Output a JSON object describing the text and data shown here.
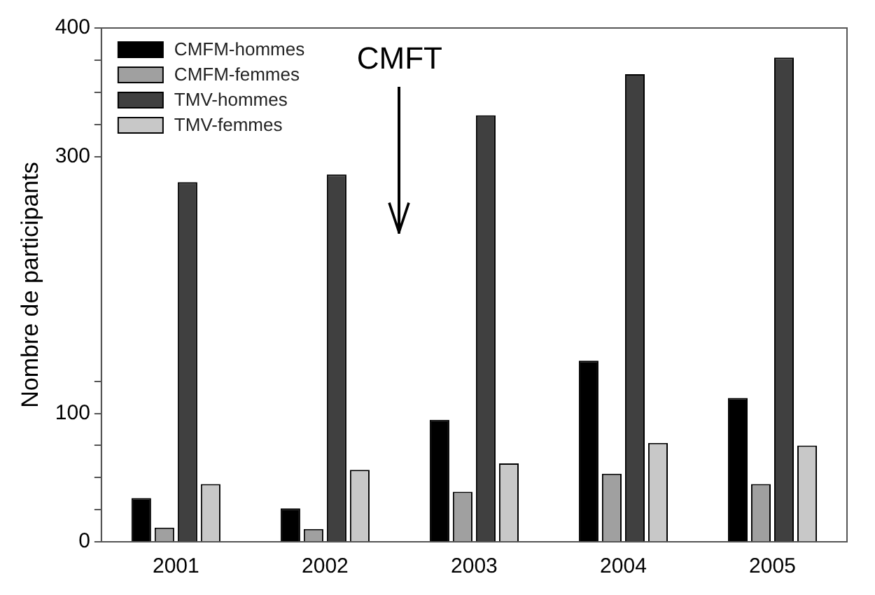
{
  "chart_data": {
    "type": "bar",
    "ylabel": "Nombre de participants",
    "categories": [
      "2001",
      "2002",
      "2003",
      "2004",
      "2005"
    ],
    "series": [
      {
        "name": "CMFM-hommes",
        "color": "#000000",
        "values": [
          34,
          26,
          95,
          141,
          112
        ]
      },
      {
        "name": "CMFM-femmes",
        "color": "#a0a0a0",
        "values": [
          11,
          10,
          39,
          53,
          45
        ]
      },
      {
        "name": "TMV-hommes",
        "color": "#404040",
        "values": [
          280,
          286,
          332,
          364,
          377
        ]
      },
      {
        "name": "TMV-femmes",
        "color": "#c8c8c8",
        "values": [
          45,
          56,
          61,
          77,
          75
        ]
      }
    ],
    "ylim": [
      0,
      400
    ],
    "yticks": [
      0,
      {
        "value": 25,
        "label": null
      },
      {
        "value": 50,
        "label": null
      },
      {
        "value": 75,
        "label": null
      },
      100,
      {
        "value": 125,
        "label": null
      },
      300,
      {
        "value": 325,
        "label": null
      },
      {
        "value": 350,
        "label": null
      },
      {
        "value": 375,
        "label": null
      },
      400
    ],
    "annotations": [
      "CMFT"
    ],
    "legend": "top left",
    "grid": false
  }
}
